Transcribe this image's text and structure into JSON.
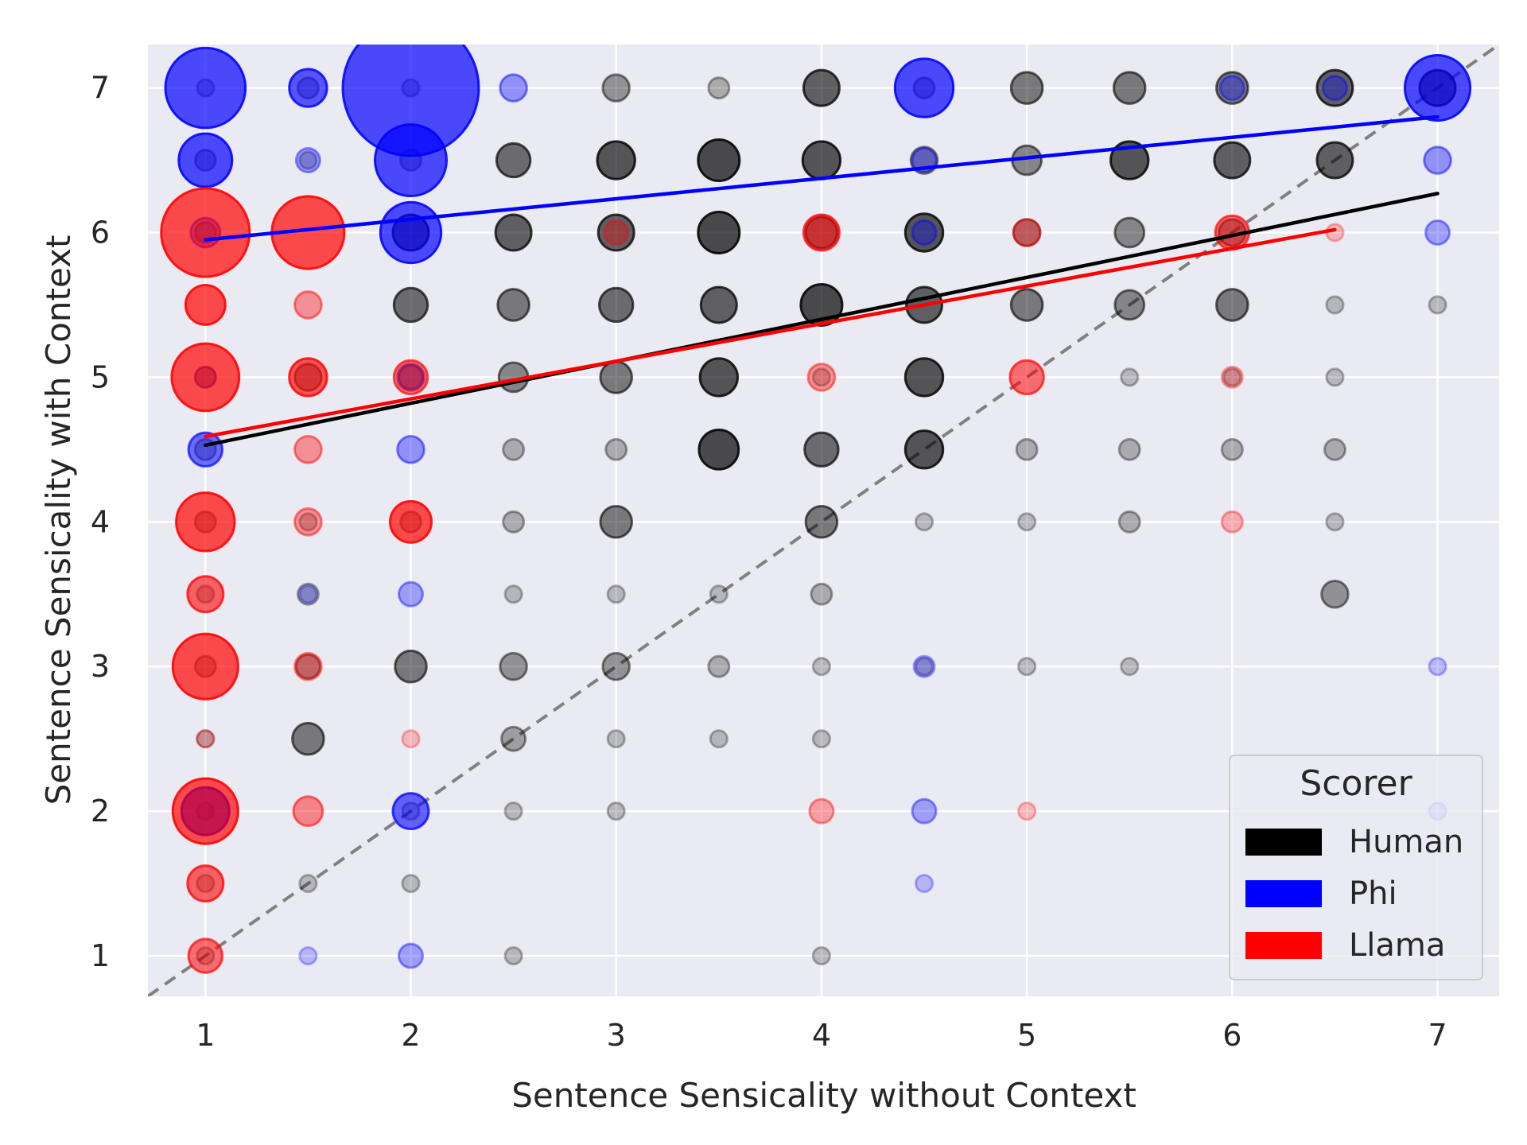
{
  "chart_data": {
    "type": "scatter",
    "title": "",
    "xlabel": "Sentence Sensicality without Context",
    "ylabel": "Sentence Sensicality with Context",
    "xlim": [
      0.72,
      7.3
    ],
    "ylim": [
      0.72,
      7.3
    ],
    "xticks": [
      1,
      2,
      3,
      4,
      5,
      6,
      7
    ],
    "yticks": [
      1,
      2,
      3,
      4,
      5,
      6,
      7
    ],
    "xtick_labels": [
      "1",
      "2",
      "3",
      "4",
      "5",
      "6",
      "7"
    ],
    "ytick_labels": [
      "1",
      "2",
      "3",
      "4",
      "5",
      "6",
      "7"
    ],
    "grid": true,
    "legend": {
      "title": "Scorer",
      "position": "lower-right",
      "entries": [
        {
          "label": "Human",
          "color": "#000000"
        },
        {
          "label": "Phi",
          "color": "#0000ff"
        },
        {
          "label": "Llama",
          "color": "#ff0000"
        }
      ]
    },
    "reference_line": {
      "label": "y = x",
      "color": "#808080",
      "style": "dashed",
      "from": [
        0.72,
        0.72
      ],
      "to": [
        7.3,
        7.3
      ]
    },
    "series": [
      {
        "name": "Human",
        "color": "#000000",
        "trend": {
          "x0": 1,
          "y0": 4.53,
          "x1": 7,
          "y1": 6.27
        },
        "points": [
          [
            1,
            7,
            2
          ],
          [
            1.5,
            7,
            3
          ],
          [
            2,
            7,
            2
          ],
          [
            3,
            7,
            5
          ],
          [
            3.5,
            7,
            3
          ],
          [
            4,
            7,
            9
          ],
          [
            4.5,
            7,
            3
          ],
          [
            5,
            7,
            7
          ],
          [
            5.5,
            7,
            7
          ],
          [
            6,
            7,
            7
          ],
          [
            6.5,
            7,
            9
          ],
          [
            7,
            7,
            9
          ],
          [
            1,
            6.5,
            3
          ],
          [
            1.5,
            6.5,
            2
          ],
          [
            2,
            6.5,
            3
          ],
          [
            2.5,
            6.5,
            8
          ],
          [
            3,
            6.5,
            10
          ],
          [
            3.5,
            6.5,
            12
          ],
          [
            4,
            6.5,
            10
          ],
          [
            4.5,
            6.5,
            5
          ],
          [
            5,
            6.5,
            6
          ],
          [
            5.5,
            6.5,
            10
          ],
          [
            6,
            6.5,
            9
          ],
          [
            6.5,
            6.5,
            9
          ],
          [
            1,
            6,
            3
          ],
          [
            2,
            6,
            9
          ],
          [
            2.5,
            6,
            9
          ],
          [
            3,
            6,
            9
          ],
          [
            3.5,
            6,
            12
          ],
          [
            4,
            6,
            7
          ],
          [
            4.5,
            6,
            10
          ],
          [
            5,
            6,
            5
          ],
          [
            5.5,
            6,
            6
          ],
          [
            6,
            6,
            5
          ],
          [
            2,
            5.5,
            8
          ],
          [
            2.5,
            5.5,
            7
          ],
          [
            3,
            5.5,
            8
          ],
          [
            3.5,
            5.5,
            9
          ],
          [
            4,
            5.5,
            12
          ],
          [
            4.5,
            5.5,
            9
          ],
          [
            5,
            5.5,
            7
          ],
          [
            5.5,
            5.5,
            6
          ],
          [
            6,
            5.5,
            7
          ],
          [
            6.5,
            5.5,
            2
          ],
          [
            7,
            5.5,
            2
          ],
          [
            1,
            5,
            3
          ],
          [
            1.5,
            5,
            5
          ],
          [
            2,
            5,
            4
          ],
          [
            2.5,
            5,
            6
          ],
          [
            3,
            5,
            7
          ],
          [
            3.5,
            5,
            10
          ],
          [
            4,
            5,
            2
          ],
          [
            4.5,
            5,
            10
          ],
          [
            5.5,
            5,
            2
          ],
          [
            6,
            5,
            2
          ],
          [
            6.5,
            5,
            2
          ],
          [
            1,
            4.5,
            3
          ],
          [
            2.5,
            4.5,
            3
          ],
          [
            3,
            4.5,
            3
          ],
          [
            3.5,
            4.5,
            11
          ],
          [
            4,
            4.5,
            8
          ],
          [
            4.5,
            4.5,
            10
          ],
          [
            5,
            4.5,
            3
          ],
          [
            5.5,
            4.5,
            3
          ],
          [
            6,
            4.5,
            3
          ],
          [
            6.5,
            4.5,
            3
          ],
          [
            1,
            4,
            3
          ],
          [
            1.5,
            4,
            2
          ],
          [
            2,
            4,
            3
          ],
          [
            2.5,
            4,
            3
          ],
          [
            3,
            4,
            7
          ],
          [
            4,
            4,
            7
          ],
          [
            4.5,
            4,
            2
          ],
          [
            5,
            4,
            2
          ],
          [
            5.5,
            4,
            3
          ],
          [
            6.5,
            4,
            2
          ],
          [
            1,
            3.5,
            2
          ],
          [
            1.5,
            3.5,
            3
          ],
          [
            2.5,
            3.5,
            2
          ],
          [
            3,
            3.5,
            2
          ],
          [
            3.5,
            3.5,
            2
          ],
          [
            4,
            3.5,
            3
          ],
          [
            6.5,
            3.5,
            5
          ],
          [
            1,
            3,
            3
          ],
          [
            1.5,
            3,
            4
          ],
          [
            2,
            3,
            7
          ],
          [
            2.5,
            3,
            5
          ],
          [
            3,
            3,
            5
          ],
          [
            3.5,
            3,
            3
          ],
          [
            4,
            3,
            2
          ],
          [
            4.5,
            3,
            2
          ],
          [
            5,
            3,
            2
          ],
          [
            5.5,
            3,
            2
          ],
          [
            1,
            2.5,
            2
          ],
          [
            1.5,
            2.5,
            7
          ],
          [
            2.5,
            2.5,
            4
          ],
          [
            3,
            2.5,
            2
          ],
          [
            3.5,
            2.5,
            2
          ],
          [
            4,
            2.5,
            2
          ],
          [
            1,
            2,
            2
          ],
          [
            2,
            2,
            2
          ],
          [
            2.5,
            2,
            2
          ],
          [
            3,
            2,
            2
          ],
          [
            1,
            1.5,
            2
          ],
          [
            1.5,
            1.5,
            2
          ],
          [
            2,
            1.5,
            2
          ],
          [
            1,
            1,
            2
          ],
          [
            2.5,
            1,
            2
          ],
          [
            4,
            1,
            2
          ]
        ]
      },
      {
        "name": "Phi",
        "color": "#0000ff",
        "trend": {
          "x0": 1,
          "y0": 5.95,
          "x1": 7,
          "y1": 6.8
        },
        "points": [
          [
            1,
            7,
            45
          ],
          [
            1.5,
            7,
            10
          ],
          [
            2,
            7,
            130
          ],
          [
            2.5,
            7,
            5
          ],
          [
            4.5,
            7,
            24
          ],
          [
            6,
            7,
            4
          ],
          [
            6.5,
            7,
            4
          ],
          [
            7,
            7,
            30
          ],
          [
            1,
            6.5,
            20
          ],
          [
            1.5,
            6.5,
            4
          ],
          [
            2,
            6.5,
            36
          ],
          [
            4.5,
            6.5,
            4
          ],
          [
            7,
            6.5,
            5
          ],
          [
            1,
            6,
            6
          ],
          [
            2,
            6,
            26
          ],
          [
            4.5,
            6,
            4
          ],
          [
            7,
            6,
            4
          ],
          [
            1,
            5,
            3
          ],
          [
            2,
            5,
            5
          ],
          [
            1,
            4.5,
            8
          ],
          [
            2,
            4.5,
            5
          ],
          [
            1.5,
            3.5,
            2
          ],
          [
            2,
            3.5,
            4
          ],
          [
            4.5,
            3,
            3
          ],
          [
            7,
            3,
            2
          ],
          [
            1,
            2,
            16
          ],
          [
            2,
            2,
            9
          ],
          [
            4.5,
            2,
            4
          ],
          [
            7,
            2,
            2
          ],
          [
            4.5,
            1.5,
            2
          ],
          [
            1.5,
            1,
            2
          ],
          [
            2,
            1,
            4
          ]
        ]
      },
      {
        "name": "Llama",
        "color": "#ff0000",
        "trend": {
          "x0": 1,
          "y0": 4.59,
          "x1": 6.5,
          "y1": 6.02
        },
        "points": [
          [
            1,
            6,
            55
          ],
          [
            1.5,
            6,
            37
          ],
          [
            3,
            6,
            4
          ],
          [
            4,
            6,
            9
          ],
          [
            5,
            6,
            5
          ],
          [
            6,
            6,
            8
          ],
          [
            6.5,
            6,
            2
          ],
          [
            1,
            5.5,
            11
          ],
          [
            1.5,
            5.5,
            5
          ],
          [
            1,
            5,
            32
          ],
          [
            1.5,
            5,
            10
          ],
          [
            2,
            5,
            8
          ],
          [
            4,
            5,
            5
          ],
          [
            5,
            5,
            8
          ],
          [
            6,
            5,
            3
          ],
          [
            1.5,
            4.5,
            5
          ],
          [
            1,
            4,
            24
          ],
          [
            1.5,
            4,
            5
          ],
          [
            2,
            4,
            12
          ],
          [
            6,
            4,
            3
          ],
          [
            1,
            3.5,
            9
          ],
          [
            1,
            3,
            30
          ],
          [
            1.5,
            3,
            5
          ],
          [
            1,
            2.5,
            2
          ],
          [
            2,
            2.5,
            2
          ],
          [
            1,
            2,
            30
          ],
          [
            1.5,
            2,
            6
          ],
          [
            4,
            2,
            4
          ],
          [
            5,
            2,
            2
          ],
          [
            1,
            1.5,
            9
          ],
          [
            1,
            1,
            8
          ]
        ]
      }
    ]
  }
}
